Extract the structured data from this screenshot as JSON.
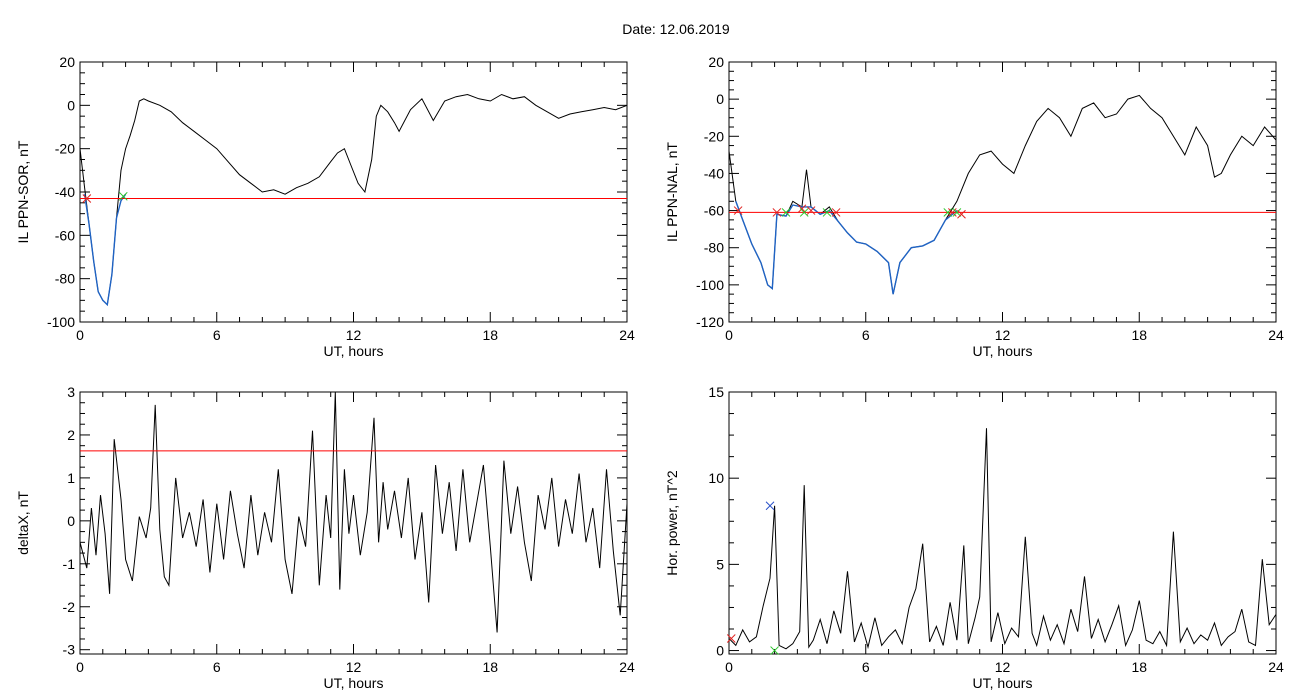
{
  "title": "Date:  12.06.2019",
  "colors": {
    "trace": "#000000",
    "highlight": "#1f63c4",
    "threshold": "#ff0000",
    "marker_red": "#e0201e",
    "marker_green": "#27c427",
    "marker_blue": "#2850c8"
  },
  "chart_data": [
    {
      "id": "top-left",
      "type": "line",
      "xlabel": "UT, hours",
      "ylabel": "IL PPN-SOR, nT",
      "xlim": [
        0,
        24
      ],
      "ylim": [
        -100,
        20
      ],
      "xticks": [
        0,
        6,
        12,
        18,
        24
      ],
      "yticks": [
        -100,
        -80,
        -60,
        -40,
        -20,
        0,
        20
      ],
      "series": [
        {
          "color": "black",
          "x": [
            0,
            0.2,
            0.4,
            0.6,
            0.8,
            1.0,
            1.2,
            1.4,
            1.6,
            1.8,
            2.0,
            2.2,
            2.4,
            2.6,
            2.8,
            3.0,
            3.5,
            4.0,
            4.5,
            5.0,
            5.5,
            6.0,
            6.5,
            7.0,
            7.5,
            8.0,
            8.5,
            9.0,
            9.5,
            10.0,
            10.5,
            11.0,
            11.3,
            11.6,
            11.9,
            12.2,
            12.5,
            12.8,
            13.0,
            13.2,
            13.5,
            13.8,
            14.0,
            14.5,
            15.0,
            15.5,
            16.0,
            16.5,
            17.0,
            17.5,
            18.0,
            18.5,
            19.0,
            19.5,
            20.0,
            20.5,
            21.0,
            21.5,
            22.0,
            22.5,
            23.0,
            23.5,
            24.0
          ],
          "y": [
            -20,
            -38,
            -55,
            -72,
            -86,
            -90,
            -92,
            -78,
            -52,
            -30,
            -20,
            -14,
            -7,
            2,
            3,
            2,
            0,
            -3,
            -8,
            -12,
            -16,
            -20,
            -26,
            -32,
            -36,
            -40,
            -39,
            -41,
            -38,
            -36,
            -33,
            -26,
            -22,
            -20,
            -28,
            -36,
            -40,
            -25,
            -5,
            0,
            -3,
            -8,
            -12,
            -2,
            3,
            -7,
            2,
            4,
            5,
            3,
            2,
            5,
            3,
            4,
            0,
            -3,
            -6,
            -4,
            -3,
            -2,
            -1,
            -2,
            0
          ]
        },
        {
          "color": "blue",
          "x": [
            0.2,
            0.4,
            0.6,
            0.8,
            1.0,
            1.2,
            1.4,
            1.6,
            1.8,
            2.0
          ],
          "y": [
            -41,
            -55,
            -72,
            -86,
            -90,
            -92,
            -78,
            -52,
            -44,
            -41
          ]
        }
      ],
      "threshold": -43,
      "markers": [
        {
          "x": 0.3,
          "y": -43,
          "color": "red"
        },
        {
          "x": 1.9,
          "y": -42,
          "color": "green"
        }
      ]
    },
    {
      "id": "top-right",
      "type": "line",
      "xlabel": "UT, hours",
      "ylabel": "IL PPN-NAL, nT",
      "xlim": [
        0,
        24
      ],
      "ylim": [
        -120,
        20
      ],
      "xticks": [
        0,
        6,
        12,
        18,
        24
      ],
      "yticks": [
        -120,
        -100,
        -80,
        -60,
        -40,
        -20,
        0,
        20
      ],
      "series": [
        {
          "color": "black",
          "x": [
            0,
            0.3,
            0.6,
            1.0,
            1.4,
            1.7,
            1.9,
            2.1,
            2.5,
            2.8,
            3.2,
            3.4,
            3.6,
            4.0,
            4.4,
            4.8,
            5.2,
            5.6,
            6.0,
            6.5,
            7.0,
            7.2,
            7.5,
            8.0,
            8.5,
            9.0,
            9.5,
            10.0,
            10.5,
            11.0,
            11.5,
            12.0,
            12.5,
            13.0,
            13.5,
            14.0,
            14.5,
            15.0,
            15.5,
            16.0,
            16.5,
            17.0,
            17.5,
            18.0,
            18.5,
            19.0,
            19.5,
            20.0,
            20.5,
            21.0,
            21.3,
            21.6,
            22.0,
            22.5,
            23.0,
            23.5,
            24.0
          ],
          "y": [
            -28,
            -55,
            -65,
            -78,
            -88,
            -100,
            -102,
            -62,
            -63,
            -55,
            -58,
            -38,
            -58,
            -62,
            -58,
            -66,
            -72,
            -77,
            -78,
            -82,
            -88,
            -105,
            -88,
            -80,
            -79,
            -76,
            -65,
            -55,
            -40,
            -30,
            -28,
            -35,
            -40,
            -25,
            -12,
            -5,
            -10,
            -20,
            -5,
            -2,
            -10,
            -8,
            0,
            2,
            -5,
            -10,
            -20,
            -30,
            -15,
            -25,
            -42,
            -40,
            -30,
            -20,
            -25,
            -15,
            -22
          ]
        },
        {
          "color": "blue",
          "x": [
            0.3,
            0.6,
            1.0,
            1.4,
            1.7,
            1.9,
            2.1,
            2.5,
            2.8,
            3.2,
            3.6,
            4.0,
            4.4,
            4.8,
            5.2,
            5.6,
            6.0,
            6.5,
            7.0,
            7.2,
            7.5,
            8.0,
            8.5,
            9.0,
            9.5,
            10.0
          ],
          "y": [
            -55,
            -65,
            -78,
            -88,
            -100,
            -102,
            -62,
            -63,
            -57,
            -58,
            -58,
            -62,
            -60,
            -66,
            -72,
            -77,
            -78,
            -82,
            -88,
            -105,
            -88,
            -80,
            -79,
            -76,
            -65,
            -60
          ]
        }
      ],
      "threshold": -61,
      "markers": [
        {
          "x": 0.4,
          "y": -60,
          "color": "red"
        },
        {
          "x": 2.1,
          "y": -61,
          "color": "red"
        },
        {
          "x": 2.5,
          "y": -61,
          "color": "green"
        },
        {
          "x": 3.2,
          "y": -59,
          "color": "red"
        },
        {
          "x": 3.3,
          "y": -61,
          "color": "green"
        },
        {
          "x": 3.6,
          "y": -60,
          "color": "red"
        },
        {
          "x": 4.3,
          "y": -61,
          "color": "green"
        },
        {
          "x": 4.7,
          "y": -61,
          "color": "red"
        },
        {
          "x": 9.6,
          "y": -61,
          "color": "green"
        },
        {
          "x": 9.8,
          "y": -61,
          "color": "red"
        },
        {
          "x": 10.0,
          "y": -61,
          "color": "green"
        },
        {
          "x": 10.2,
          "y": -62,
          "color": "red"
        }
      ]
    },
    {
      "id": "bottom-left",
      "type": "line",
      "xlabel": "UT, hours",
      "ylabel": "deltaX, nT",
      "xlim": [
        0,
        24
      ],
      "ylim": [
        -3.1,
        3
      ],
      "xticks": [
        0,
        6,
        12,
        18,
        24
      ],
      "yticks": [
        -3,
        -2,
        -1,
        0,
        1,
        2,
        3
      ],
      "series": [
        {
          "color": "black",
          "x": [
            0,
            0.3,
            0.5,
            0.7,
            0.9,
            1.1,
            1.3,
            1.5,
            1.8,
            2.0,
            2.3,
            2.6,
            2.9,
            3.1,
            3.3,
            3.5,
            3.7,
            3.9,
            4.2,
            4.5,
            4.8,
            5.1,
            5.4,
            5.7,
            6.0,
            6.3,
            6.6,
            6.9,
            7.2,
            7.5,
            7.8,
            8.1,
            8.4,
            8.7,
            9.0,
            9.3,
            9.6,
            9.9,
            10.2,
            10.5,
            10.8,
            11.0,
            11.2,
            11.4,
            11.6,
            11.8,
            12.0,
            12.3,
            12.6,
            12.9,
            13.1,
            13.3,
            13.5,
            13.8,
            14.1,
            14.4,
            14.7,
            15.0,
            15.3,
            15.6,
            15.9,
            16.2,
            16.5,
            16.8,
            17.1,
            17.4,
            17.7,
            18.0,
            18.3,
            18.6,
            18.9,
            19.2,
            19.5,
            19.8,
            20.1,
            20.4,
            20.7,
            21.0,
            21.3,
            21.6,
            21.9,
            22.2,
            22.5,
            22.8,
            23.1,
            23.4,
            23.7,
            24.0
          ],
          "y": [
            -0.5,
            -1.1,
            0.3,
            -0.8,
            0.6,
            -0.3,
            -1.7,
            1.9,
            0.5,
            -0.9,
            -1.4,
            0.1,
            -0.4,
            0.3,
            2.7,
            -0.2,
            -1.3,
            -1.5,
            1.0,
            -0.4,
            0.2,
            -0.6,
            0.5,
            -1.2,
            0.4,
            -0.9,
            0.7,
            -0.3,
            -1.1,
            0.6,
            -0.8,
            0.2,
            -0.5,
            1.2,
            -0.9,
            -1.7,
            0.1,
            -0.6,
            2.1,
            -1.5,
            0.6,
            -0.4,
            3.0,
            -1.6,
            1.2,
            -0.3,
            0.6,
            -0.8,
            0.2,
            2.4,
            -0.5,
            0.9,
            -0.2,
            0.7,
            -0.4,
            1.0,
            -0.9,
            0.2,
            -1.9,
            1.3,
            -0.3,
            0.9,
            -0.7,
            1.2,
            -0.5,
            0.4,
            1.3,
            -0.6,
            -2.6,
            1.4,
            -0.3,
            0.8,
            -0.5,
            -1.4,
            0.6,
            -0.2,
            1.0,
            -0.6,
            0.5,
            -0.3,
            1.1,
            -0.5,
            0.3,
            -1.1,
            1.2,
            -0.7,
            -2.2,
            0.4
          ]
        }
      ],
      "threshold": 1.63,
      "markers": []
    },
    {
      "id": "bottom-right",
      "type": "line",
      "xlabel": "UT, hours",
      "ylabel": "Hor. power, nT^2",
      "xlim": [
        0,
        24
      ],
      "ylim": [
        -0.2,
        15
      ],
      "xticks": [
        0,
        6,
        12,
        18,
        24
      ],
      "yticks": [
        0,
        5,
        10,
        15
      ],
      "series": [
        {
          "color": "black",
          "x": [
            0,
            0.3,
            0.6,
            0.9,
            1.2,
            1.5,
            1.8,
            2.0,
            2.2,
            2.5,
            2.8,
            3.1,
            3.3,
            3.5,
            3.7,
            4.0,
            4.3,
            4.6,
            4.9,
            5.2,
            5.5,
            5.8,
            6.1,
            6.4,
            6.7,
            7.0,
            7.3,
            7.6,
            7.9,
            8.2,
            8.5,
            8.8,
            9.1,
            9.4,
            9.7,
            10.0,
            10.3,
            10.5,
            10.8,
            11.0,
            11.3,
            11.5,
            11.8,
            12.1,
            12.4,
            12.7,
            13.0,
            13.3,
            13.5,
            13.8,
            14.1,
            14.4,
            14.7,
            15.0,
            15.3,
            15.6,
            15.9,
            16.2,
            16.5,
            16.8,
            17.1,
            17.4,
            17.7,
            18.0,
            18.3,
            18.6,
            18.9,
            19.2,
            19.5,
            19.8,
            20.1,
            20.4,
            20.7,
            21.0,
            21.3,
            21.6,
            21.9,
            22.2,
            22.5,
            22.8,
            23.1,
            23.4,
            23.7,
            24.0
          ],
          "y": [
            0.7,
            0.3,
            1.2,
            0.5,
            0.8,
            2.6,
            4.2,
            8.4,
            0.3,
            0.1,
            0.4,
            1.1,
            9.6,
            0.2,
            0.6,
            1.8,
            0.4,
            2.3,
            1.0,
            4.6,
            0.5,
            1.6,
            0.2,
            1.9,
            0.3,
            0.8,
            1.2,
            0.4,
            2.5,
            3.6,
            6.2,
            0.5,
            1.4,
            0.3,
            2.8,
            0.6,
            6.1,
            0.4,
            1.9,
            3.1,
            12.9,
            0.5,
            2.2,
            0.4,
            1.3,
            0.8,
            6.6,
            1.0,
            0.3,
            2.0,
            0.6,
            1.5,
            0.4,
            2.4,
            1.1,
            4.3,
            0.7,
            1.8,
            0.5,
            1.5,
            2.6,
            0.3,
            1.2,
            2.9,
            0.6,
            0.4,
            1.1,
            0.3,
            6.9,
            0.5,
            1.3,
            0.4,
            0.9,
            0.6,
            1.6,
            0.3,
            0.8,
            1.1,
            2.4,
            0.5,
            0.3,
            5.3,
            1.5,
            2.1
          ]
        }
      ],
      "threshold": null,
      "markers": [
        {
          "x": 0.1,
          "y": 0.7,
          "color": "red"
        },
        {
          "x": 1.8,
          "y": 8.4,
          "color": "blue"
        },
        {
          "x": 2.0,
          "y": 0.0,
          "color": "green"
        }
      ]
    }
  ]
}
